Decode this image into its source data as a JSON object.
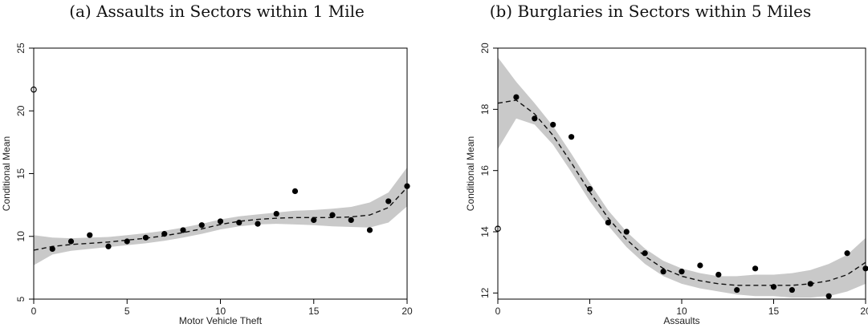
{
  "chart_data": [
    {
      "type": "scatter",
      "title": "(a) Assaults in Sectors within 1 Mile",
      "xlabel": "Motor Vehicle Theft",
      "ylabel": "Conditional Mean",
      "xlim": [
        0,
        20
      ],
      "ylim": [
        5,
        25
      ],
      "xticks": [
        "0",
        "5",
        "10",
        "15",
        "20"
      ],
      "yticks": [
        "5",
        "10",
        "15",
        "20",
        "25"
      ],
      "points": [
        {
          "x": 1,
          "y": 9.0
        },
        {
          "x": 2,
          "y": 9.6
        },
        {
          "x": 3,
          "y": 10.1
        },
        {
          "x": 4,
          "y": 9.2
        },
        {
          "x": 5,
          "y": 9.6
        },
        {
          "x": 6,
          "y": 9.9
        },
        {
          "x": 7,
          "y": 10.2
        },
        {
          "x": 8,
          "y": 10.5
        },
        {
          "x": 9,
          "y": 10.9
        },
        {
          "x": 10,
          "y": 11.2
        },
        {
          "x": 11,
          "y": 11.1
        },
        {
          "x": 12,
          "y": 11.0
        },
        {
          "x": 13,
          "y": 11.8
        },
        {
          "x": 14,
          "y": 13.6
        },
        {
          "x": 15,
          "y": 11.3
        },
        {
          "x": 16,
          "y": 11.7
        },
        {
          "x": 17,
          "y": 11.3
        },
        {
          "x": 18,
          "y": 10.5
        },
        {
          "x": 19,
          "y": 12.8
        },
        {
          "x": 20,
          "y": 14.0
        }
      ],
      "open_points": [
        {
          "x": 0,
          "y": 21.7
        }
      ],
      "fit": {
        "x": [
          0,
          1,
          2,
          3,
          4,
          5,
          6,
          7,
          8,
          9,
          10,
          11,
          12,
          13,
          14,
          15,
          16,
          17,
          18,
          19,
          20
        ],
        "y": [
          8.9,
          9.2,
          9.35,
          9.45,
          9.55,
          9.7,
          9.85,
          10.05,
          10.3,
          10.6,
          10.95,
          11.2,
          11.35,
          11.45,
          11.5,
          11.5,
          11.5,
          11.55,
          11.7,
          12.3,
          13.9
        ],
        "lower": [
          7.7,
          8.55,
          8.85,
          9.0,
          9.15,
          9.3,
          9.45,
          9.65,
          9.9,
          10.2,
          10.55,
          10.8,
          10.95,
          11.0,
          10.95,
          10.9,
          10.8,
          10.75,
          10.7,
          11.1,
          12.4
        ],
        "upper": [
          10.1,
          9.9,
          9.85,
          9.9,
          9.95,
          10.1,
          10.25,
          10.45,
          10.7,
          11.0,
          11.35,
          11.6,
          11.75,
          11.9,
          12.05,
          12.1,
          12.2,
          12.35,
          12.7,
          13.5,
          15.5
        ]
      }
    },
    {
      "type": "scatter",
      "title": "(b) Burglaries in Sectors within 5 Miles",
      "xlabel": "Assaults",
      "ylabel": "Conditional Mean",
      "xlim": [
        0,
        20
      ],
      "ylim": [
        11.8,
        20
      ],
      "xticks": [
        "0",
        "5",
        "10",
        "15",
        "20"
      ],
      "yticks": [
        "12",
        "14",
        "16",
        "18",
        "20"
      ],
      "points": [
        {
          "x": 1,
          "y": 18.4
        },
        {
          "x": 2,
          "y": 17.7
        },
        {
          "x": 3,
          "y": 17.5
        },
        {
          "x": 4,
          "y": 17.1
        },
        {
          "x": 5,
          "y": 15.4
        },
        {
          "x": 6,
          "y": 14.3
        },
        {
          "x": 7,
          "y": 14.0
        },
        {
          "x": 8,
          "y": 13.3
        },
        {
          "x": 9,
          "y": 12.7
        },
        {
          "x": 10,
          "y": 12.7
        },
        {
          "x": 11,
          "y": 12.9
        },
        {
          "x": 12,
          "y": 12.6
        },
        {
          "x": 13,
          "y": 12.1
        },
        {
          "x": 14,
          "y": 12.8
        },
        {
          "x": 15,
          "y": 12.2
        },
        {
          "x": 16,
          "y": 12.1
        },
        {
          "x": 17,
          "y": 12.3
        },
        {
          "x": 18,
          "y": 11.9
        },
        {
          "x": 19,
          "y": 13.3
        },
        {
          "x": 20,
          "y": 12.8
        }
      ],
      "open_points": [
        {
          "x": 0,
          "y": 14.1
        }
      ],
      "fit": {
        "x": [
          0,
          1,
          2,
          3,
          4,
          5,
          6,
          7,
          8,
          9,
          10,
          11,
          12,
          13,
          14,
          15,
          16,
          17,
          18,
          19,
          20
        ],
        "y": [
          18.2,
          18.3,
          17.85,
          17.15,
          16.25,
          15.3,
          14.45,
          13.75,
          13.2,
          12.8,
          12.55,
          12.4,
          12.3,
          12.25,
          12.25,
          12.25,
          12.25,
          12.3,
          12.4,
          12.6,
          13.0
        ],
        "lower": [
          16.7,
          17.7,
          17.5,
          16.85,
          15.95,
          15.0,
          14.2,
          13.5,
          12.95,
          12.55,
          12.3,
          12.15,
          12.05,
          11.95,
          11.9,
          11.9,
          11.85,
          11.85,
          11.9,
          12.05,
          12.3
        ],
        "upper": [
          19.7,
          18.9,
          18.2,
          17.45,
          16.55,
          15.6,
          14.7,
          14.0,
          13.45,
          13.05,
          12.8,
          12.65,
          12.55,
          12.55,
          12.6,
          12.6,
          12.65,
          12.75,
          12.95,
          13.25,
          13.8
        ]
      }
    }
  ]
}
